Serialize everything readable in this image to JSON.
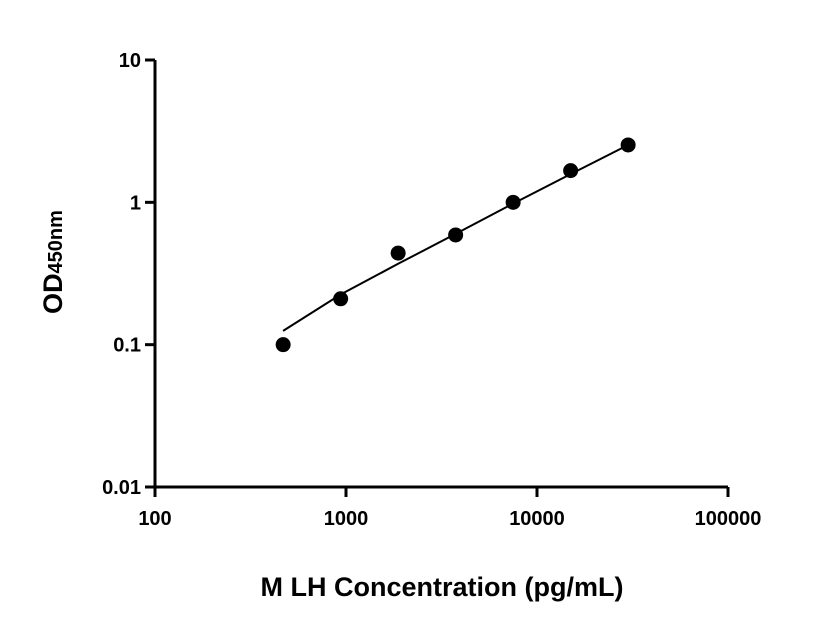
{
  "chart_data": {
    "type": "scatter",
    "xlabel": "M LH Concentration (pg/mL)",
    "ylabel": "OD",
    "ylabel_subscript": "450nm",
    "x_scale": "log",
    "y_scale": "log",
    "xlim": [
      100,
      100000
    ],
    "ylim": [
      0.01,
      10
    ],
    "x_ticks": [
      {
        "value": 100,
        "label": "100"
      },
      {
        "value": 1000,
        "label": "1000"
      },
      {
        "value": 10000,
        "label": "10000"
      },
      {
        "value": 100000,
        "label": "100000"
      }
    ],
    "y_ticks": [
      {
        "value": 0.01,
        "label": "0.01"
      },
      {
        "value": 0.1,
        "label": "0.1"
      },
      {
        "value": 1,
        "label": "1"
      },
      {
        "value": 10,
        "label": "10"
      }
    ],
    "grid": false,
    "legend": "none",
    "series": [
      {
        "points": [
          {
            "x": 468.75,
            "y": 0.1
          },
          {
            "x": 937.5,
            "y": 0.21
          },
          {
            "x": 1875,
            "y": 0.44
          },
          {
            "x": 3750,
            "y": 0.59
          },
          {
            "x": 7500,
            "y": 1.0
          },
          {
            "x": 15000,
            "y": 1.67
          },
          {
            "x": 30000,
            "y": 2.53
          }
        ],
        "fit_curve": [
          {
            "x": 468.75,
            "y": 0.125
          },
          {
            "x": 937.5,
            "y": 0.225
          },
          {
            "x": 1875,
            "y": 0.37
          },
          {
            "x": 3750,
            "y": 0.6
          },
          {
            "x": 7500,
            "y": 0.98
          },
          {
            "x": 15000,
            "y": 1.58
          },
          {
            "x": 30000,
            "y": 2.53
          }
        ]
      }
    ],
    "colors": {
      "marker": "#000000",
      "line": "#000000",
      "axis": "#000000"
    }
  }
}
